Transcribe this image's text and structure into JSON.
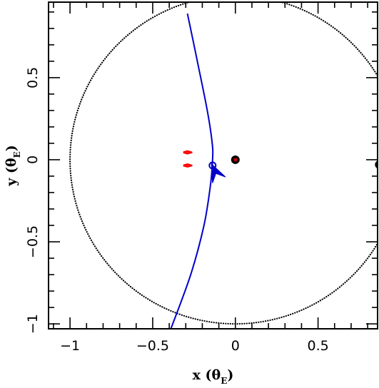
{
  "chart_data": {
    "type": "scatter",
    "title": "",
    "xlabel": {
      "main": "x (θ",
      "sub": "E",
      "close": ")"
    },
    "ylabel": {
      "main": "y (θ",
      "sub": "E",
      "close": ")"
    },
    "xlim": [
      -1.13,
      0.86
    ],
    "ylim": [
      -1.03,
      0.96
    ],
    "x_ticks": [
      {
        "value": -1,
        "label": "−1"
      },
      {
        "value": -0.5,
        "label": "−0.5"
      },
      {
        "value": 0,
        "label": "0"
      },
      {
        "value": 0.5,
        "label": "0.5"
      }
    ],
    "y_ticks": [
      {
        "value": -1,
        "label": "−1"
      },
      {
        "value": -0.5,
        "label": "−0.5"
      },
      {
        "value": 0,
        "label": "0"
      },
      {
        "value": 0.5,
        "label": "0.5"
      }
    ],
    "einstein_ring": {
      "center": [
        0,
        0
      ],
      "radius": 1.0,
      "style": "dotted",
      "color": "#000000"
    },
    "lenses": [
      {
        "name": "primary",
        "x": 0.0,
        "y": 0.0,
        "color": "#cc0000"
      },
      {
        "name": "companion",
        "x": 0.87,
        "y": -0.03,
        "color": "#000000"
      }
    ],
    "caustics": {
      "color": "#ff0000",
      "curves": [
        [
          [
            -0.315,
            0.045
          ],
          [
            -0.29,
            0.038
          ],
          [
            -0.265,
            0.045
          ],
          [
            -0.29,
            0.052
          ],
          [
            -0.315,
            0.045
          ]
        ],
        [
          [
            -0.315,
            -0.035
          ],
          [
            -0.29,
            -0.028
          ],
          [
            -0.265,
            -0.035
          ],
          [
            -0.29,
            -0.042
          ],
          [
            -0.315,
            -0.035
          ]
        ]
      ]
    },
    "source_trajectory": {
      "color": "#0000cc",
      "points": [
        [
          -0.29,
          0.89
        ],
        [
          -0.23,
          0.6
        ],
        [
          -0.17,
          0.3
        ],
        [
          -0.14,
          0.1
        ],
        [
          -0.138,
          0.0
        ],
        [
          -0.15,
          -0.15
        ],
        [
          -0.19,
          -0.4
        ],
        [
          -0.27,
          -0.7
        ],
        [
          -0.39,
          -1.03
        ]
      ]
    },
    "source": {
      "x": -0.138,
      "y": -0.035,
      "color": "#0000cc"
    },
    "direction_arrow": {
      "tip": [
        -0.145,
        -0.025
      ],
      "base": [
        -0.11,
        -0.1
      ],
      "color": "#0000cc"
    },
    "grid": false,
    "legend": "none"
  }
}
